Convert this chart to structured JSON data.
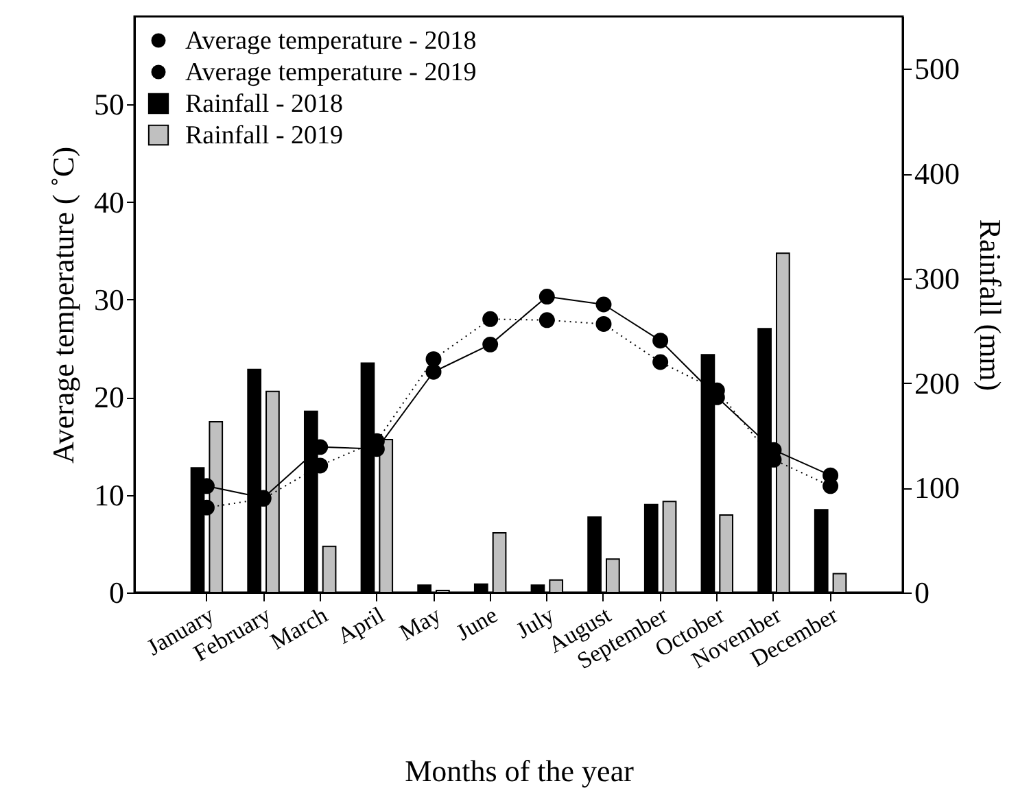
{
  "chart_data": {
    "type": "bar",
    "xlabel": "Months of the year",
    "ylabel": "Average temperature ( ˚C)",
    "y2label": "Rainfall (mm)",
    "categories": [
      "January",
      "February",
      "March",
      "April",
      "May",
      "June",
      "July",
      "August",
      "September",
      "October",
      "November",
      "December"
    ],
    "series": [
      {
        "name": "Average temperature - 2018",
        "type": "line",
        "color": "#000000",
        "marker": "circle",
        "line_style": "solid",
        "values": [
          10.9,
          9.7,
          14.9,
          14.7,
          22.6,
          25.4,
          30.3,
          29.5,
          25.8,
          20.0,
          14.6,
          12.0
        ]
      },
      {
        "name": "Average temperature - 2019",
        "type": "line",
        "color": "#000000",
        "marker": "circle",
        "line_style": "dotted",
        "values": [
          8.7,
          9.6,
          13.0,
          15.5,
          23.9,
          28.0,
          27.9,
          27.5,
          23.6,
          20.7,
          13.6,
          10.9
        ]
      },
      {
        "name": "Rainfall - 2018",
        "type": "bar",
        "axis": "y2",
        "color": "#000000",
        "values": [
          119,
          213,
          173,
          219,
          7,
          8,
          7,
          72,
          84,
          227,
          252,
          79
        ]
      },
      {
        "name": "Rainfall - 2019",
        "type": "bar",
        "axis": "y2",
        "color": "#c0c0c0",
        "values": [
          163,
          192,
          44,
          146,
          2,
          57,
          12,
          32,
          87,
          74,
          324,
          18
        ]
      }
    ],
    "ylim": [
      0,
      59
    ],
    "yticks": [
      0,
      10,
      20,
      30,
      40,
      50
    ],
    "y2lim": [
      0,
      550
    ],
    "y2ticks": [
      0,
      100,
      200,
      300,
      400,
      500
    ],
    "grid": false,
    "legend": "top left"
  }
}
